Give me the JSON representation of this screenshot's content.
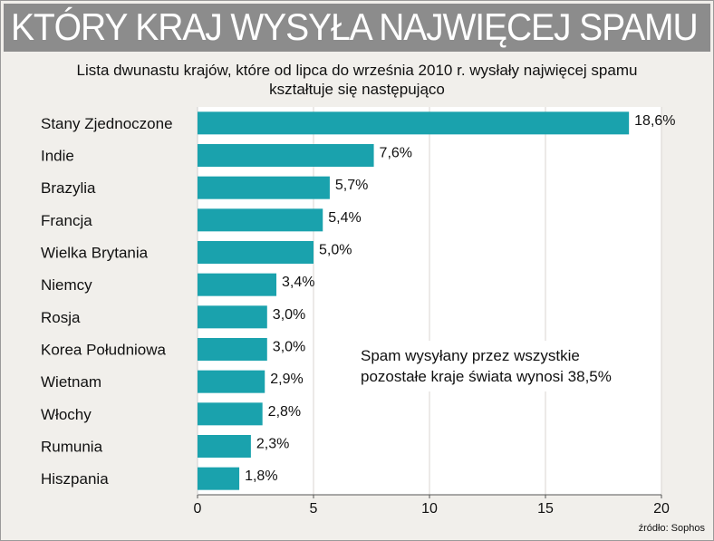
{
  "title": "KTÓRY KRAJ WYSYŁA NAJWIĘCEJ SPAMU",
  "subtitle_line1": "Lista dwunastu krajów, które od lipca do września 2010 r. wysłały najwięcej spamu",
  "subtitle_line2": "kształtuje się następująco",
  "source": "źródło: Sophos",
  "colors": {
    "bar": "#1aa2ad",
    "background": "#f1efeb",
    "title_bar": "#8c8c8c"
  },
  "chart_data": {
    "type": "bar",
    "orientation": "horizontal",
    "categories": [
      "Stany Zjednoczone",
      "Indie",
      "Brazylia",
      "Francja",
      "Wielka Brytania",
      "Niemcy",
      "Rosja",
      "Korea Południowa",
      "Wietnam",
      "Włochy",
      "Rumunia",
      "Hiszpania"
    ],
    "values": [
      18.6,
      7.6,
      5.7,
      5.4,
      5.0,
      3.4,
      3.0,
      3.0,
      2.9,
      2.8,
      2.3,
      1.8
    ],
    "value_labels": [
      "18,6%",
      "7,6%",
      "5,7%",
      "5,4%",
      "5,0%",
      "3,4%",
      "3,0%",
      "3,0%",
      "2,9%",
      "2,8%",
      "2,3%",
      "1,8%"
    ],
    "xlim": [
      0,
      20
    ],
    "xticks": [
      0,
      5,
      10,
      15,
      20
    ],
    "grid": "vertical",
    "annotation_line1": "Spam wysyłany przez wszystkie",
    "annotation_line2": "pozostałe kraje świata wynosi 38,5%"
  }
}
